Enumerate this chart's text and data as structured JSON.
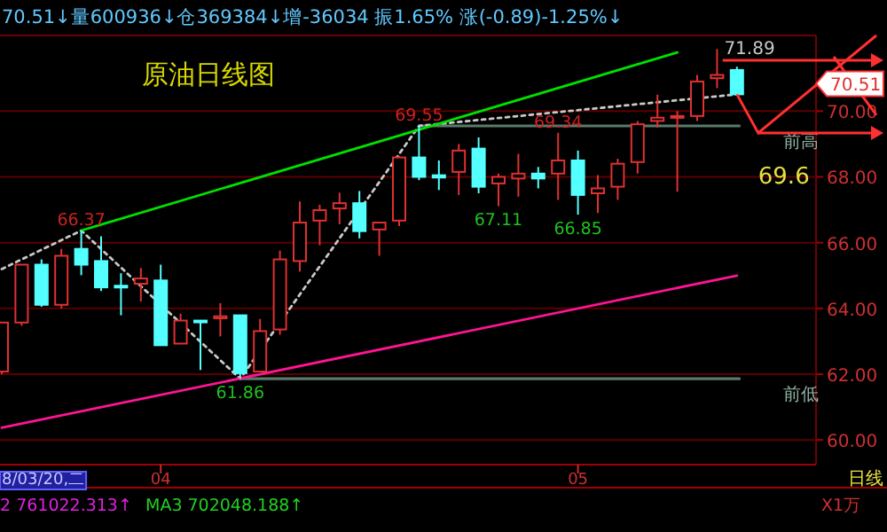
{
  "chart_data": {
    "type": "candlestick",
    "title": "原油日线图",
    "subtitle": "70.51↓量600936↓仓369384↓增-36034 振1.65% 涨(-0.89)-1.25%↓",
    "categories": [
      null,
      null,
      null,
      null,
      null,
      null,
      null,
      null,
      "04",
      null,
      null,
      null,
      null,
      null,
      null,
      null,
      null,
      null,
      null,
      null,
      null,
      null,
      null,
      null,
      null,
      null,
      null,
      null,
      null,
      "05",
      null,
      null,
      null,
      null,
      null,
      null,
      null,
      null
    ],
    "ohlc": [
      [
        62.08,
        63.57,
        62.0,
        63.57
      ],
      [
        63.57,
        65.33,
        63.47,
        65.33
      ],
      [
        65.33,
        65.49,
        64.05,
        64.11
      ],
      [
        64.11,
        65.81,
        64.0,
        65.6
      ],
      [
        65.81,
        66.37,
        65.01,
        65.33
      ],
      [
        65.44,
        66.19,
        64.53,
        64.64
      ],
      [
        64.69,
        65.07,
        63.79,
        64.67
      ],
      [
        64.75,
        65.23,
        64.21,
        64.91
      ],
      [
        64.85,
        65.33,
        62.88,
        62.88
      ],
      [
        62.93,
        63.84,
        62.93,
        63.63
      ],
      [
        63.63,
        63.63,
        62.13,
        63.6
      ],
      [
        63.7,
        64.16,
        63.15,
        63.76
      ],
      [
        63.79,
        63.79,
        61.86,
        62.03
      ],
      [
        62.08,
        63.68,
        62.08,
        63.31
      ],
      [
        63.36,
        65.76,
        63.2,
        65.49
      ],
      [
        65.44,
        67.25,
        65.12,
        66.61
      ],
      [
        66.67,
        67.15,
        65.92,
        66.99
      ],
      [
        67.04,
        67.52,
        66.56,
        67.2
      ],
      [
        67.2,
        67.57,
        66.13,
        66.35
      ],
      [
        66.4,
        66.61,
        65.6,
        66.61
      ],
      [
        66.67,
        68.64,
        66.5,
        68.59
      ],
      [
        68.59,
        69.55,
        67.9,
        68.0
      ],
      [
        68.05,
        68.5,
        67.6,
        67.98
      ],
      [
        68.15,
        69.0,
        67.45,
        68.8
      ],
      [
        68.86,
        69.2,
        67.5,
        67.7
      ],
      [
        67.8,
        68.1,
        67.11,
        68.0
      ],
      [
        67.95,
        68.7,
        67.4,
        68.1
      ],
      [
        68.1,
        68.3,
        67.65,
        67.95
      ],
      [
        68.1,
        69.34,
        67.3,
        68.5
      ],
      [
        68.5,
        68.8,
        66.85,
        67.45
      ],
      [
        67.5,
        68.05,
        66.9,
        67.65
      ],
      [
        67.7,
        68.55,
        67.3,
        68.4
      ],
      [
        68.45,
        69.7,
        68.1,
        69.6
      ],
      [
        69.7,
        70.5,
        69.5,
        69.8
      ],
      [
        69.82,
        70.0,
        67.55,
        69.85
      ],
      [
        69.85,
        71.1,
        69.7,
        70.9
      ],
      [
        71.0,
        71.89,
        70.7,
        71.1
      ],
      [
        71.25,
        71.35,
        70.51,
        70.51
      ]
    ],
    "series": [
      {
        "type": "line",
        "color": "#c8c8c8",
        "line_style": "dotted",
        "values": [
          65.2,
          null,
          null,
          null,
          66.37,
          null,
          null,
          null,
          null,
          null,
          null,
          null,
          61.86,
          null,
          null,
          null,
          null,
          null,
          null,
          null,
          null,
          69.55,
          null,
          null,
          null,
          null,
          null,
          null,
          null,
          null,
          null,
          null,
          null,
          null,
          null,
          null,
          null,
          70.51
        ]
      },
      {
        "type": "line",
        "color": "#00e000",
        "line_style": "solid",
        "values": [
          null,
          null,
          null,
          null,
          66.37,
          null,
          null,
          null,
          null,
          null,
          null,
          null,
          null,
          null,
          null,
          null,
          null,
          null,
          null,
          null,
          null,
          null,
          null,
          null,
          null,
          null,
          null,
          null,
          null,
          null,
          null,
          null,
          null,
          null,
          71.78,
          null,
          null,
          null
        ]
      },
      {
        "type": "line",
        "color": "#ff1493",
        "line_style": "solid",
        "values": [
          60.37,
          null,
          null,
          null,
          null,
          null,
          null,
          null,
          null,
          null,
          null,
          null,
          null,
          null,
          null,
          null,
          null,
          null,
          null,
          null,
          null,
          null,
          null,
          null,
          null,
          null,
          null,
          null,
          null,
          null,
          null,
          null,
          null,
          null,
          null,
          null,
          null,
          65.0
        ]
      }
    ],
    "ylim": [
      59.25,
      72.3
    ],
    "yticks": [
      {
        "value": 60,
        "label": "60.00"
      },
      {
        "value": 62,
        "label": "62.00"
      },
      {
        "value": 64,
        "label": "64.00"
      },
      {
        "value": 66,
        "label": "66.00"
      },
      {
        "value": 68,
        "label": "68.00"
      },
      {
        "value": 70,
        "label": "70.00"
      }
    ],
    "grid": "y",
    "ref_lines": [
      {
        "axis": "y",
        "value": 69.55,
        "label": "前高",
        "color": "#5a7a6a"
      },
      {
        "axis": "y",
        "value": 61.86,
        "label": "前低",
        "color": "#5a7a6a"
      }
    ],
    "annotations": [
      "66.37",
      "61.86",
      "69.55",
      "69.34",
      "67.11",
      "66.85",
      "71.89",
      "70.51",
      "69.6",
      "8/03/20,二",
      "日线",
      "2 761022.313↑",
      "MA3 702048.188↑",
      "X1万"
    ]
  }
}
